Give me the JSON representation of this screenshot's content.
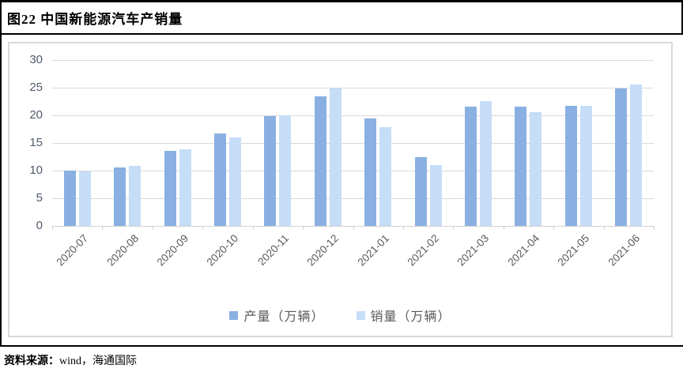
{
  "title": "图22 中国新能源汽车产销量",
  "footer": {
    "source_label": "资料来源：",
    "source_text": "wind，海通国际"
  },
  "colors": {
    "production_bar": "#8AB0E2",
    "sales_bar": "#C6DDF8",
    "gridline": "#D9D9D9",
    "axis_text": "#4F5A6B",
    "category_text": "#595959",
    "frame_border": "#D9D9D9",
    "rule_black": "#000000"
  },
  "chart_data": {
    "type": "bar",
    "title": "",
    "xlabel": "",
    "ylabel": "",
    "ylim": [
      0,
      30
    ],
    "ytick_step": 5,
    "yticks": [
      0,
      5,
      10,
      15,
      20,
      25,
      30
    ],
    "grid": true,
    "legend_position": "bottom",
    "categories": [
      "2020-07",
      "2020-08",
      "2020-09",
      "2020-10",
      "2020-11",
      "2020-12",
      "2021-01",
      "2021-02",
      "2021-03",
      "2021-04",
      "2021-05",
      "2021-06"
    ],
    "series": [
      {
        "key": "production",
        "name": "产量（万辆）",
        "color": "#8AB0E2",
        "values": [
          10.0,
          10.6,
          13.6,
          16.7,
          19.8,
          23.5,
          19.4,
          12.4,
          21.6,
          21.6,
          21.7,
          24.8
        ]
      },
      {
        "key": "sales",
        "name": "销量（万辆）",
        "color": "#C6DDF8",
        "values": [
          9.8,
          10.9,
          13.8,
          16.0,
          20.0,
          24.8,
          17.9,
          11.0,
          22.6,
          20.6,
          21.7,
          25.6
        ]
      }
    ]
  }
}
